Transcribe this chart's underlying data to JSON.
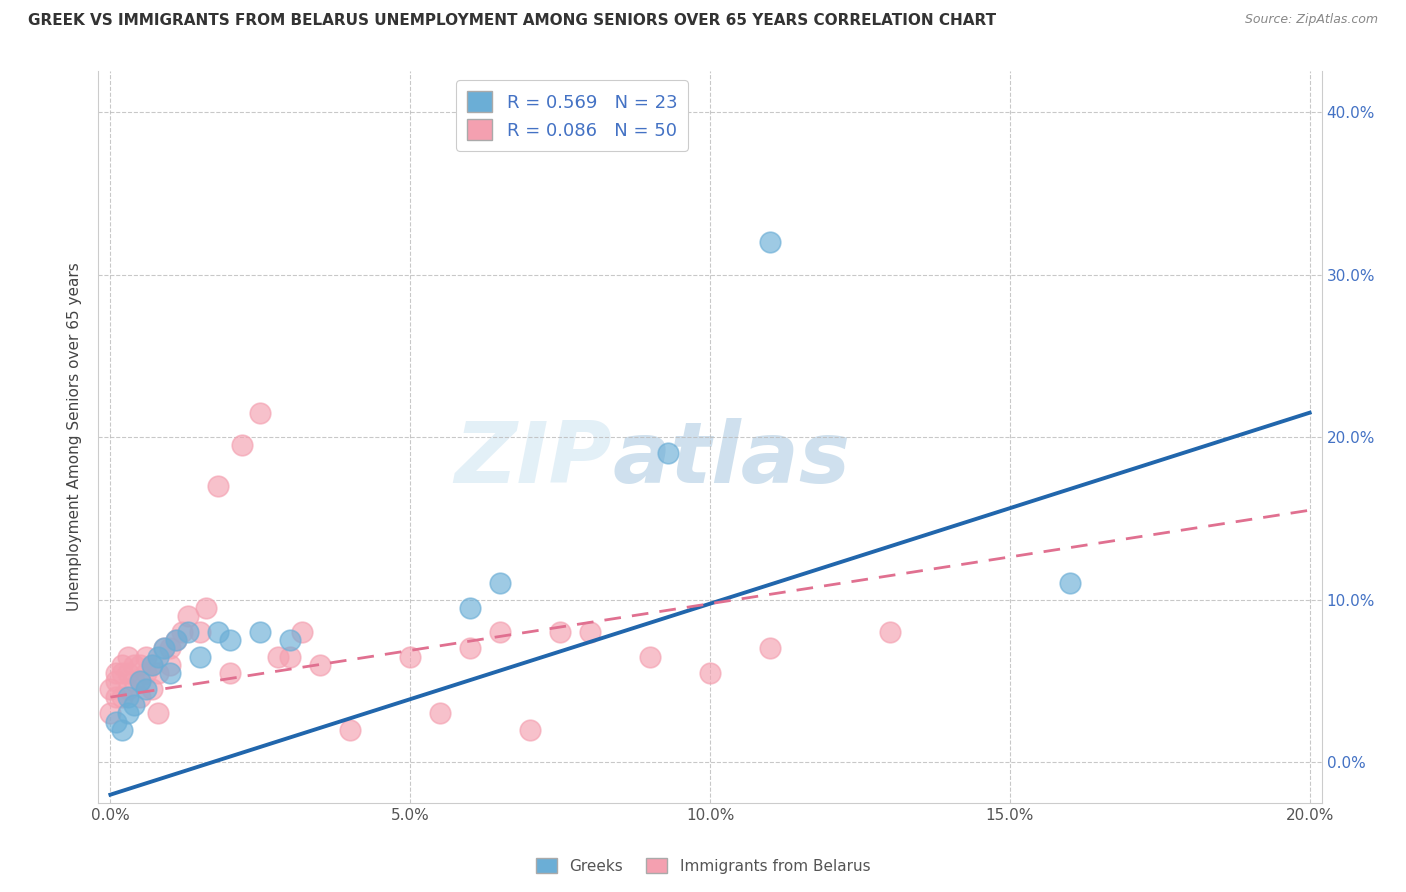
{
  "title": "GREEK VS IMMIGRANTS FROM BELARUS UNEMPLOYMENT AMONG SENIORS OVER 65 YEARS CORRELATION CHART",
  "source": "Source: ZipAtlas.com",
  "ylabel": "Unemployment Among Seniors over 65 years",
  "xlabel_ticks": [
    "0.0%",
    "5.0%",
    "10.0%",
    "15.0%",
    "20.0%"
  ],
  "xlabel_vals": [
    0.0,
    0.05,
    0.1,
    0.15,
    0.2
  ],
  "ylabel_ticks": [
    "0.0%",
    "10.0%",
    "20.0%",
    "30.0%",
    "40.0%"
  ],
  "ylabel_vals": [
    0.0,
    0.1,
    0.2,
    0.3,
    0.4
  ],
  "xlim": [
    -0.002,
    0.202
  ],
  "ylim": [
    -0.025,
    0.425
  ],
  "greek_color": "#6baed6",
  "greek_edge_color": "#5a9ec8",
  "belarus_color": "#f4a0b0",
  "belarus_edge_color": "#e8849a",
  "greek_R": 0.569,
  "greek_N": 23,
  "belarus_R": 0.086,
  "belarus_N": 50,
  "legend_label_greek": "Greeks",
  "legend_label_belarus": "Immigrants from Belarus",
  "watermark_zip": "ZIP",
  "watermark_atlas": "atlas",
  "greek_x": [
    0.001,
    0.002,
    0.003,
    0.003,
    0.004,
    0.005,
    0.006,
    0.007,
    0.008,
    0.009,
    0.01,
    0.011,
    0.013,
    0.015,
    0.018,
    0.02,
    0.025,
    0.03,
    0.06,
    0.065,
    0.093,
    0.11,
    0.16
  ],
  "greek_y": [
    0.025,
    0.02,
    0.03,
    0.04,
    0.035,
    0.05,
    0.045,
    0.06,
    0.065,
    0.07,
    0.055,
    0.075,
    0.08,
    0.065,
    0.08,
    0.075,
    0.08,
    0.075,
    0.095,
    0.11,
    0.19,
    0.32,
    0.11
  ],
  "belarus_x": [
    0.0,
    0.0,
    0.001,
    0.001,
    0.001,
    0.002,
    0.002,
    0.002,
    0.003,
    0.003,
    0.003,
    0.004,
    0.004,
    0.005,
    0.005,
    0.005,
    0.006,
    0.006,
    0.007,
    0.007,
    0.008,
    0.008,
    0.009,
    0.01,
    0.01,
    0.011,
    0.012,
    0.013,
    0.015,
    0.016,
    0.018,
    0.02,
    0.022,
    0.025,
    0.028,
    0.03,
    0.032,
    0.035,
    0.04,
    0.05,
    0.055,
    0.06,
    0.065,
    0.07,
    0.075,
    0.08,
    0.09,
    0.1,
    0.11,
    0.13
  ],
  "belarus_y": [
    0.03,
    0.045,
    0.04,
    0.05,
    0.055,
    0.04,
    0.055,
    0.06,
    0.045,
    0.055,
    0.065,
    0.05,
    0.06,
    0.04,
    0.05,
    0.06,
    0.055,
    0.065,
    0.045,
    0.06,
    0.03,
    0.055,
    0.07,
    0.06,
    0.07,
    0.075,
    0.08,
    0.09,
    0.08,
    0.095,
    0.17,
    0.055,
    0.195,
    0.215,
    0.065,
    0.065,
    0.08,
    0.06,
    0.02,
    0.065,
    0.03,
    0.07,
    0.08,
    0.02,
    0.08,
    0.08,
    0.065,
    0.055,
    0.07,
    0.08
  ],
  "greek_trend_x0": 0.0,
  "greek_trend_y0": -0.02,
  "greek_trend_x1": 0.2,
  "greek_trend_y1": 0.215,
  "belarus_trend_x0": 0.0,
  "belarus_trend_y0": 0.04,
  "belarus_trend_x1": 0.2,
  "belarus_trend_y1": 0.155
}
